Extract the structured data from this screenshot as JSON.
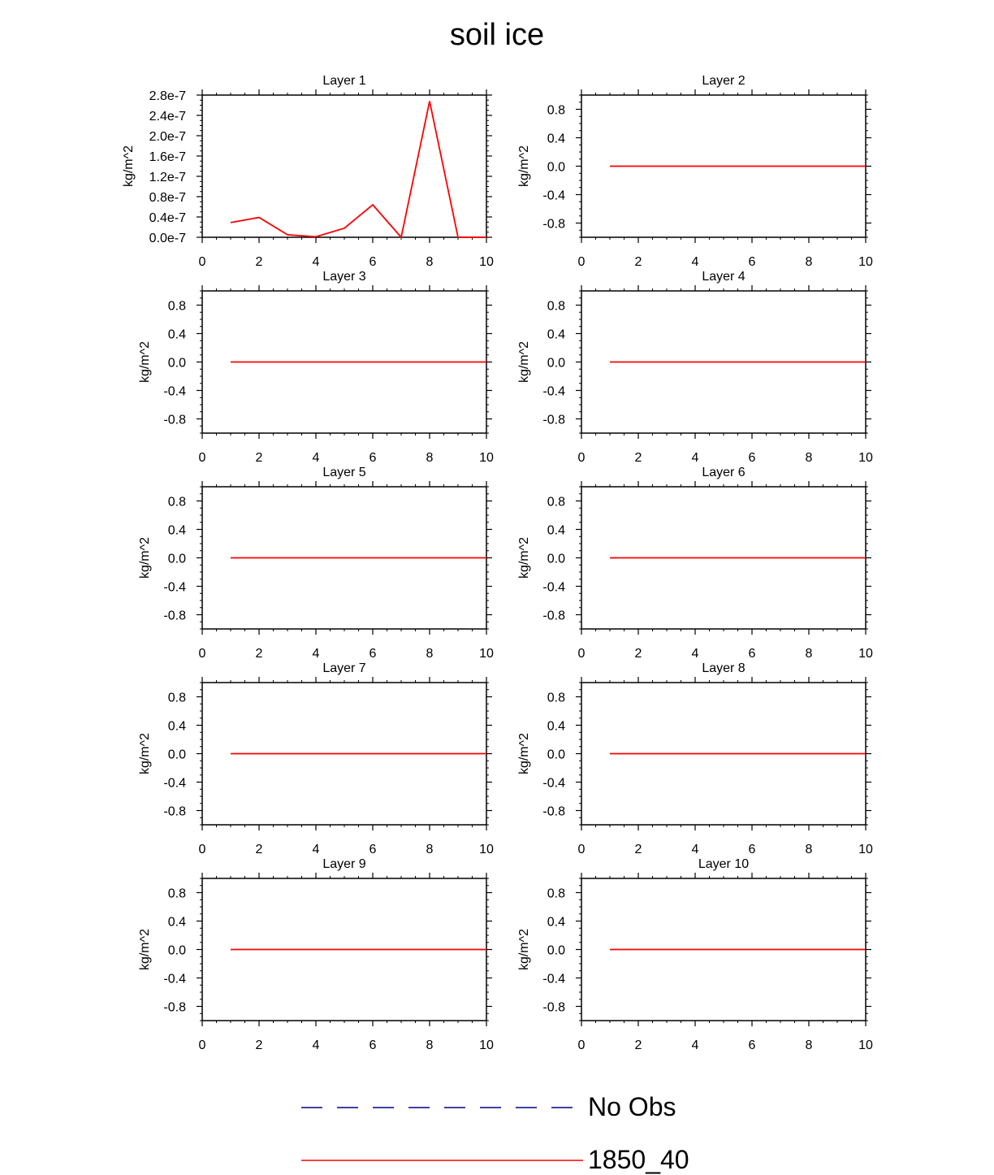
{
  "title": "soil ice",
  "colors": {
    "model_line": "#ff0000",
    "obs_line": "#000080",
    "axis": "#000000"
  },
  "legend": [
    {
      "label": "No Obs",
      "style": "dashed",
      "color": "#000080"
    },
    {
      "label": "1850_40",
      "style": "solid",
      "color": "#ff0000"
    }
  ],
  "chart_data": [
    {
      "type": "line",
      "title": "Layer 1",
      "ylabel": "kg/m^2",
      "xlim": [
        0,
        10
      ],
      "ylim": [
        0,
        2.8e-07
      ],
      "xticks": [
        0,
        2,
        4,
        6,
        8,
        10
      ],
      "xtick_labels": [
        "0",
        "2",
        "4",
        "6",
        "8",
        "10"
      ],
      "yticks": [
        0,
        4e-08,
        8e-08,
        1.2e-07,
        1.6e-07,
        2e-07,
        2.4e-07,
        2.8e-07
      ],
      "ytick_labels": [
        "0.0e-7",
        "0.4e-7",
        "0.8e-7",
        "1.2e-7",
        "1.6e-7",
        "2.0e-7",
        "2.4e-7",
        "2.8e-7"
      ],
      "series": [
        {
          "x": [
            1,
            2,
            3,
            4,
            5,
            6,
            7,
            8,
            9,
            10
          ],
          "y": [
            2.9e-08,
            3.9e-08,
            5e-09,
            1e-09,
            1.8e-08,
            6.4e-08,
            0,
            2.68e-07,
            0,
            0
          ]
        }
      ]
    },
    {
      "type": "line",
      "title": "Layer 2",
      "ylabel": "kg/m^2",
      "xlim": [
        0,
        10
      ],
      "ylim": [
        -1,
        1
      ],
      "xticks": [
        0,
        2,
        4,
        6,
        8,
        10
      ],
      "xtick_labels": [
        "0",
        "2",
        "4",
        "6",
        "8",
        "10"
      ],
      "yticks": [
        -0.8,
        -0.4,
        0,
        0.4,
        0.8
      ],
      "ytick_labels": [
        "-0.8",
        "-0.4",
        "0.0",
        "0.4",
        "0.8"
      ],
      "series": [
        {
          "x": [
            1,
            2,
            3,
            4,
            5,
            6,
            7,
            8,
            9,
            10
          ],
          "y": [
            0,
            0,
            0,
            0,
            0,
            0,
            0,
            0,
            0,
            0
          ]
        }
      ]
    },
    {
      "type": "line",
      "title": "Layer 3",
      "ylabel": "kg/m^2",
      "xlim": [
        0,
        10
      ],
      "ylim": [
        -1,
        1
      ],
      "xticks": [
        0,
        2,
        4,
        6,
        8,
        10
      ],
      "xtick_labels": [
        "0",
        "2",
        "4",
        "6",
        "8",
        "10"
      ],
      "yticks": [
        -0.8,
        -0.4,
        0,
        0.4,
        0.8
      ],
      "ytick_labels": [
        "-0.8",
        "-0.4",
        "0.0",
        "0.4",
        "0.8"
      ],
      "series": [
        {
          "x": [
            1,
            2,
            3,
            4,
            5,
            6,
            7,
            8,
            9,
            10
          ],
          "y": [
            0,
            0,
            0,
            0,
            0,
            0,
            0,
            0,
            0,
            0
          ]
        }
      ]
    },
    {
      "type": "line",
      "title": "Layer 4",
      "ylabel": "kg/m^2",
      "xlim": [
        0,
        10
      ],
      "ylim": [
        -1,
        1
      ],
      "xticks": [
        0,
        2,
        4,
        6,
        8,
        10
      ],
      "xtick_labels": [
        "0",
        "2",
        "4",
        "6",
        "8",
        "10"
      ],
      "yticks": [
        -0.8,
        -0.4,
        0,
        0.4,
        0.8
      ],
      "ytick_labels": [
        "-0.8",
        "-0.4",
        "0.0",
        "0.4",
        "0.8"
      ],
      "series": [
        {
          "x": [
            1,
            2,
            3,
            4,
            5,
            6,
            7,
            8,
            9,
            10
          ],
          "y": [
            0,
            0,
            0,
            0,
            0,
            0,
            0,
            0,
            0,
            0
          ]
        }
      ]
    },
    {
      "type": "line",
      "title": "Layer 5",
      "ylabel": "kg/m^2",
      "xlim": [
        0,
        10
      ],
      "ylim": [
        -1,
        1
      ],
      "xticks": [
        0,
        2,
        4,
        6,
        8,
        10
      ],
      "xtick_labels": [
        "0",
        "2",
        "4",
        "6",
        "8",
        "10"
      ],
      "yticks": [
        -0.8,
        -0.4,
        0,
        0.4,
        0.8
      ],
      "ytick_labels": [
        "-0.8",
        "-0.4",
        "0.0",
        "0.4",
        "0.8"
      ],
      "series": [
        {
          "x": [
            1,
            2,
            3,
            4,
            5,
            6,
            7,
            8,
            9,
            10
          ],
          "y": [
            0,
            0,
            0,
            0,
            0,
            0,
            0,
            0,
            0,
            0
          ]
        }
      ]
    },
    {
      "type": "line",
      "title": "Layer 6",
      "ylabel": "kg/m^2",
      "xlim": [
        0,
        10
      ],
      "ylim": [
        -1,
        1
      ],
      "xticks": [
        0,
        2,
        4,
        6,
        8,
        10
      ],
      "xtick_labels": [
        "0",
        "2",
        "4",
        "6",
        "8",
        "10"
      ],
      "yticks": [
        -0.8,
        -0.4,
        0,
        0.4,
        0.8
      ],
      "ytick_labels": [
        "-0.8",
        "-0.4",
        "0.0",
        "0.4",
        "0.8"
      ],
      "series": [
        {
          "x": [
            1,
            2,
            3,
            4,
            5,
            6,
            7,
            8,
            9,
            10
          ],
          "y": [
            0,
            0,
            0,
            0,
            0,
            0,
            0,
            0,
            0,
            0
          ]
        }
      ]
    },
    {
      "type": "line",
      "title": "Layer 7",
      "ylabel": "kg/m^2",
      "xlim": [
        0,
        10
      ],
      "ylim": [
        -1,
        1
      ],
      "xticks": [
        0,
        2,
        4,
        6,
        8,
        10
      ],
      "xtick_labels": [
        "0",
        "2",
        "4",
        "6",
        "8",
        "10"
      ],
      "yticks": [
        -0.8,
        -0.4,
        0,
        0.4,
        0.8
      ],
      "ytick_labels": [
        "-0.8",
        "-0.4",
        "0.0",
        "0.4",
        "0.8"
      ],
      "series": [
        {
          "x": [
            1,
            2,
            3,
            4,
            5,
            6,
            7,
            8,
            9,
            10
          ],
          "y": [
            0,
            0,
            0,
            0,
            0,
            0,
            0,
            0,
            0,
            0
          ]
        }
      ]
    },
    {
      "type": "line",
      "title": "Layer 8",
      "ylabel": "kg/m^2",
      "xlim": [
        0,
        10
      ],
      "ylim": [
        -1,
        1
      ],
      "xticks": [
        0,
        2,
        4,
        6,
        8,
        10
      ],
      "xtick_labels": [
        "0",
        "2",
        "4",
        "6",
        "8",
        "10"
      ],
      "yticks": [
        -0.8,
        -0.4,
        0,
        0.4,
        0.8
      ],
      "ytick_labels": [
        "-0.8",
        "-0.4",
        "0.0",
        "0.4",
        "0.8"
      ],
      "series": [
        {
          "x": [
            1,
            2,
            3,
            4,
            5,
            6,
            7,
            8,
            9,
            10
          ],
          "y": [
            0,
            0,
            0,
            0,
            0,
            0,
            0,
            0,
            0,
            0
          ]
        }
      ]
    },
    {
      "type": "line",
      "title": "Layer 9",
      "ylabel": "kg/m^2",
      "xlim": [
        0,
        10
      ],
      "ylim": [
        -1,
        1
      ],
      "xticks": [
        0,
        2,
        4,
        6,
        8,
        10
      ],
      "xtick_labels": [
        "0",
        "2",
        "4",
        "6",
        "8",
        "10"
      ],
      "yticks": [
        -0.8,
        -0.4,
        0,
        0.4,
        0.8
      ],
      "ytick_labels": [
        "-0.8",
        "-0.4",
        "0.0",
        "0.4",
        "0.8"
      ],
      "series": [
        {
          "x": [
            1,
            2,
            3,
            4,
            5,
            6,
            7,
            8,
            9,
            10
          ],
          "y": [
            0,
            0,
            0,
            0,
            0,
            0,
            0,
            0,
            0,
            0
          ]
        }
      ]
    },
    {
      "type": "line",
      "title": "Layer 10",
      "ylabel": "kg/m^2",
      "xlim": [
        0,
        10
      ],
      "ylim": [
        -1,
        1
      ],
      "xticks": [
        0,
        2,
        4,
        6,
        8,
        10
      ],
      "xtick_labels": [
        "0",
        "2",
        "4",
        "6",
        "8",
        "10"
      ],
      "yticks": [
        -0.8,
        -0.4,
        0,
        0.4,
        0.8
      ],
      "ytick_labels": [
        "-0.8",
        "-0.4",
        "0.0",
        "0.4",
        "0.8"
      ],
      "series": [
        {
          "x": [
            1,
            2,
            3,
            4,
            5,
            6,
            7,
            8,
            9,
            10
          ],
          "y": [
            0,
            0,
            0,
            0,
            0,
            0,
            0,
            0,
            0,
            0
          ]
        }
      ]
    }
  ]
}
